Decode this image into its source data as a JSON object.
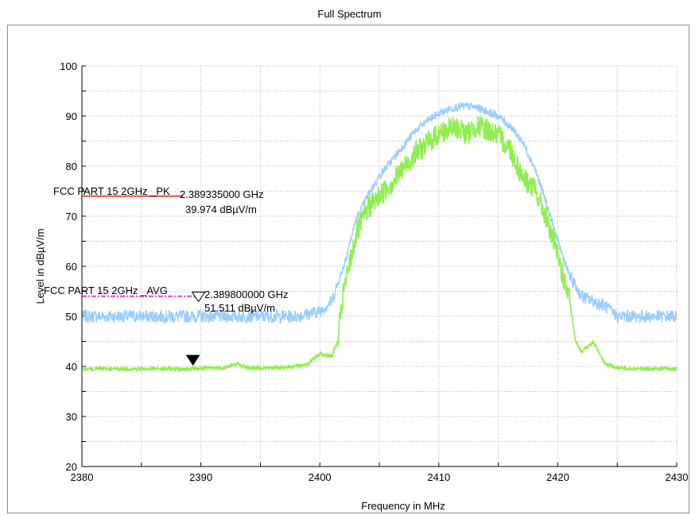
{
  "chart_data": {
    "type": "line",
    "title": "Full Spectrum",
    "xlabel": "Frequency in MHz",
    "ylabel": "Level in dBµV/m",
    "xlim": [
      2380,
      2430
    ],
    "ylim": [
      20,
      100
    ],
    "x_ticks": [
      2380,
      2390,
      2400,
      2410,
      2420,
      2430
    ],
    "y_ticks": [
      20,
      30,
      40,
      50,
      60,
      70,
      80,
      90,
      100
    ],
    "grid": true,
    "series": [
      {
        "name": "",
        "color": "#99ccff",
        "x": [
          2380,
          2385,
          2390,
          2395,
          2398,
          2400,
          2401,
          2402,
          2403,
          2404,
          2405,
          2406,
          2407,
          2408,
          2409,
          2410,
          2411,
          2412,
          2413,
          2414,
          2415,
          2416,
          2417,
          2418,
          2419,
          2420,
          2421,
          2422,
          2423,
          2424,
          2425,
          2427,
          2430
        ],
        "values": [
          50,
          50,
          50,
          50,
          50,
          51,
          53,
          60,
          69,
          74,
          78,
          81,
          84,
          87,
          89,
          90.5,
          91.5,
          92,
          91.8,
          91,
          90,
          88,
          85,
          80,
          73,
          65,
          58,
          54,
          53,
          52,
          50,
          50,
          50
        ]
      },
      {
        "name": "",
        "color": "#90ee50",
        "x": [
          2380,
          2385,
          2389,
          2391,
          2392,
          2393,
          2394,
          2396,
          2398,
          2399,
          2400,
          2401,
          2401.5,
          2402,
          2403,
          2404,
          2405,
          2406,
          2407,
          2408,
          2409,
          2410,
          2411,
          2412,
          2412.3,
          2413,
          2414,
          2415,
          2416,
          2417,
          2418,
          2419,
          2420,
          2421,
          2421.5,
          2422,
          2423,
          2424,
          2425,
          2427,
          2430
        ],
        "values": [
          39.5,
          39.5,
          39.5,
          39.7,
          39.7,
          40.5,
          39.7,
          39.7,
          40,
          40.5,
          42.5,
          42,
          45,
          55,
          66,
          71.5,
          74,
          76.5,
          79.5,
          82.5,
          84.5,
          86.5,
          87.5,
          87.5,
          86,
          88,
          87.5,
          86,
          83.5,
          78,
          75.5,
          70,
          62,
          53,
          45,
          43,
          44.8,
          40.5,
          39.7,
          39.5,
          39.5
        ]
      }
    ],
    "limit_lines": [
      {
        "label": "FCC PART 15 2GHz _PK",
        "color": "#e84c4c",
        "x": [
          2380,
          2388.5
        ],
        "y": 74
      },
      {
        "label": "FCC PART 15 2GHz _AVG",
        "color": "#e040e0",
        "x": [
          2380,
          2389.5
        ],
        "y": 54
      }
    ],
    "markers": [
      {
        "freq_label": "2.389800000 GHz",
        "level_label": "51.511 dBµV/m",
        "freq": 2389.8,
        "level": 51.511,
        "symbol": "open-triangle"
      },
      {
        "freq_label": "2.389335000 GHz",
        "level_label": "39.974 dBµV/m",
        "freq": 2389.335,
        "level": 39.974,
        "symbol": "filled-triangle"
      }
    ]
  }
}
